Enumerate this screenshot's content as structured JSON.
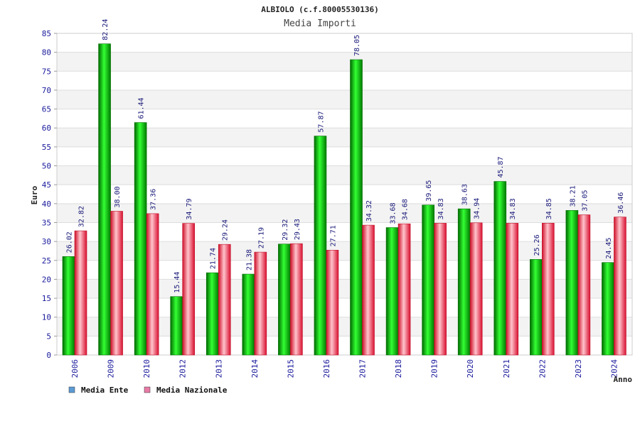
{
  "colors": {
    "ente": "#00b000",
    "nazionale": "#e8203a",
    "legend_ente": "#5b9bd5",
    "legend_nazionale": "#e87aa6",
    "grid_band": "#f3f3f3",
    "tick_text": "#1a1a9c"
  },
  "chart_data": {
    "type": "bar",
    "title": "ALBIOLO (c.f.80005530136)",
    "subtitle": "Media Importi",
    "xlabel": "Anno",
    "ylabel": "Euro",
    "ylim": [
      0,
      85
    ],
    "ytick_step": 5,
    "grid": true,
    "legend_position": "bottom-left",
    "categories": [
      "2006",
      "2009",
      "2010",
      "2012",
      "2013",
      "2014",
      "2015",
      "2016",
      "2017",
      "2018",
      "2019",
      "2020",
      "2021",
      "2022",
      "2023",
      "2024"
    ],
    "series": [
      {
        "name": "Media Ente",
        "values": [
          26.02,
          82.24,
          61.44,
          15.44,
          21.74,
          21.38,
          29.32,
          57.87,
          78.05,
          33.68,
          39.65,
          38.63,
          45.87,
          25.26,
          38.21,
          24.45
        ],
        "labels": [
          "26.02",
          "82.24",
          "61.44",
          "15.44",
          "21.74",
          "21.38",
          "29.32",
          "57.87",
          "78.05",
          "33.68",
          "39.65",
          "38.63",
          "45.87",
          "25.26",
          "38.21",
          "24.45"
        ]
      },
      {
        "name": "Media Nazionale",
        "values": [
          32.82,
          38.0,
          37.36,
          34.79,
          29.24,
          27.19,
          29.43,
          27.71,
          34.32,
          34.68,
          34.83,
          34.94,
          34.83,
          34.85,
          37.05,
          36.46
        ],
        "labels": [
          "32.82",
          "38.00",
          "37.36",
          "34.79",
          "29.24",
          "27.19",
          "29.43",
          "27.71",
          "34.32",
          "34.68",
          "34.83",
          "34.94",
          "34.83",
          "34.85",
          "37.05",
          "36.46"
        ]
      }
    ]
  }
}
